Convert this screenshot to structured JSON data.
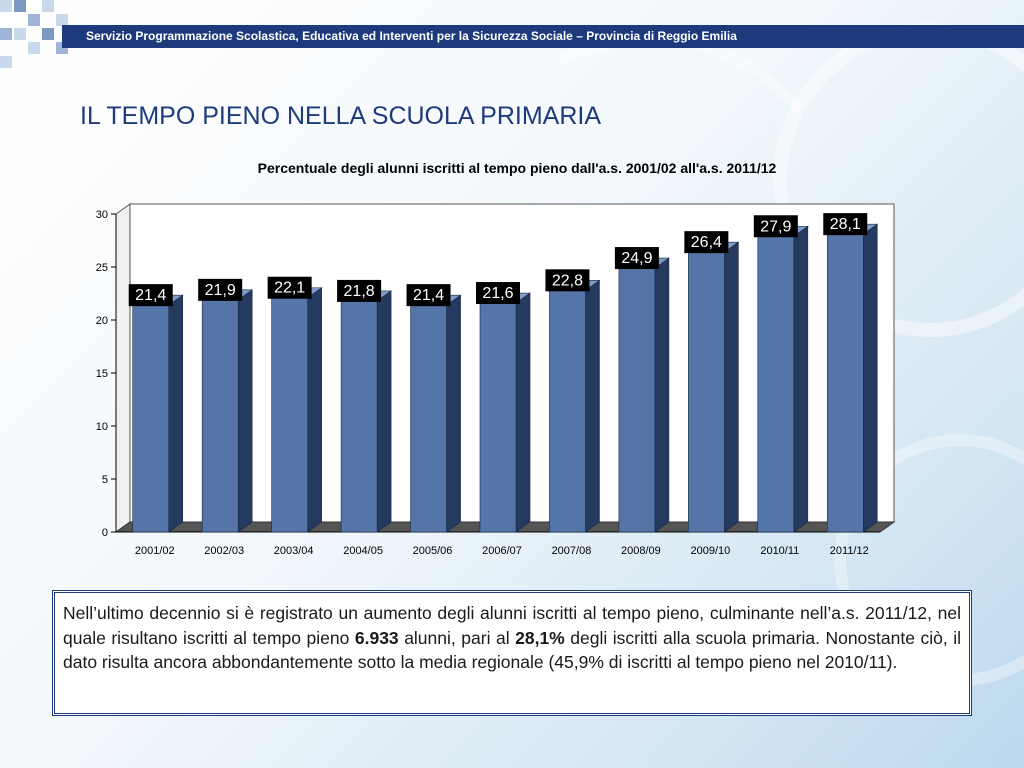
{
  "header": {
    "text": "Servizio Programmazione Scolastica, Educativa ed Interventi per la Sicurezza Sociale – Provincia di Reggio Emilia"
  },
  "slide": {
    "title": "IL TEMPO PIENO NELLA SCUOLA PRIMARIA"
  },
  "chart_data": {
    "type": "bar",
    "title": "Percentuale degli alunni iscritti al tempo pieno dall'a.s. 2001/02 all'a.s. 2011/12",
    "xlabel": "",
    "ylabel": "",
    "ylim": [
      0,
      30
    ],
    "yticks": [
      0,
      5,
      10,
      15,
      20,
      25,
      30
    ],
    "categories": [
      "2001/02",
      "2002/03",
      "2003/04",
      "2004/05",
      "2005/06",
      "2006/07",
      "2007/08",
      "2008/09",
      "2009/10",
      "2010/11",
      "2011/12"
    ],
    "values": [
      21.4,
      21.9,
      22.1,
      21.8,
      21.4,
      21.6,
      22.8,
      24.9,
      26.4,
      27.9,
      28.1
    ],
    "value_labels": [
      "21,4",
      "21,9",
      "22,1",
      "21,8",
      "21,4",
      "21,6",
      "22,8",
      "24,9",
      "26,4",
      "27,9",
      "28,1"
    ],
    "grid": false,
    "bar_color": "#5575a8"
  },
  "note": {
    "part1": "Nell’ultimo decennio si è registrato un aumento degli alunni iscritti al tempo pieno, culminante nell’a.s. 2011/12, nel quale risultano iscritti al tempo pieno ",
    "count": "6.933",
    "part2": " alunni, pari al ",
    "percent": "28,1%",
    "part3": " degli iscritti alla scuola primaria. Nonostante ciò, il dato risulta ancora abbondantemente sotto la media regionale (45,9% di iscritti al tempo pieno nel 2010/11)."
  }
}
